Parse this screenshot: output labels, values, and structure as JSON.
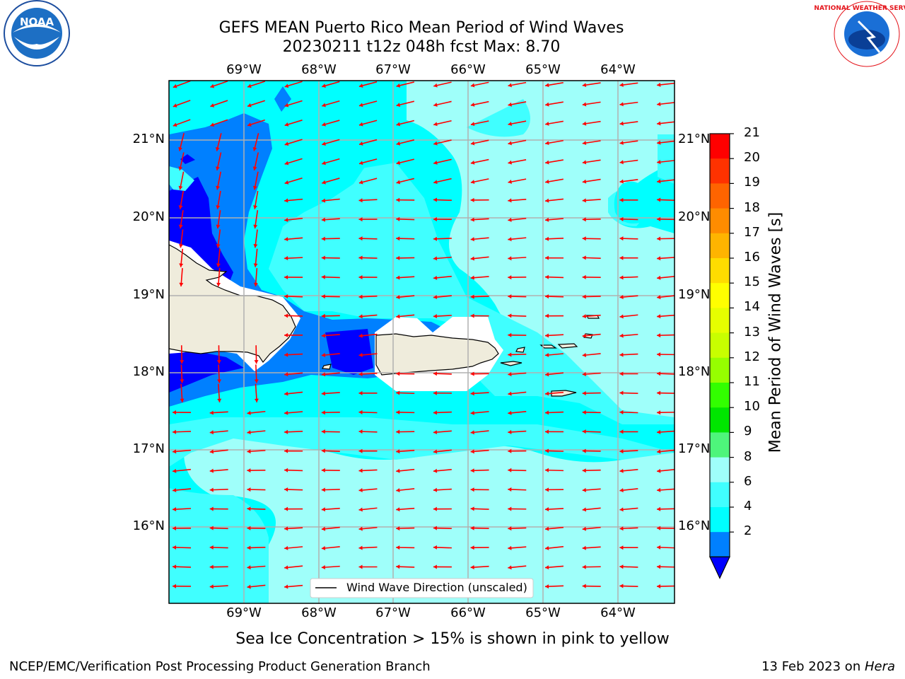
{
  "header": {
    "title_line1": "GEFS MEAN Puerto Rico Mean Period of Wind Waves",
    "title_line2": "20230211 t12z 048h fcst   Max: 8.70",
    "noara_logo_text": "NOAA",
    "noaa_seal_text": "NATIONAL OCEANIC AND ATMOSPHERIC ADMINISTRATION · U.S. DEPARTMENT OF COMMERCE",
    "nws_logo_text": "NATIONAL WEATHER SERVICE"
  },
  "map": {
    "lon_labels": [
      "69°W",
      "68°W",
      "67°W",
      "66°W",
      "65°W",
      "64°W"
    ],
    "lat_labels": [
      "21°N",
      "20°N",
      "19°N",
      "18°N",
      "17°N",
      "16°N"
    ],
    "legend_label": "Wind Wave Direction (unscaled)",
    "arrow_color": "#ff0000",
    "land_color": "#efecdc",
    "colors": {
      "lt2": "#0000ff",
      "2-4": "#0080ff",
      "4-6": "#00ffff",
      "6-8": "#40ffff",
      "8-9": "#9ffffa"
    }
  },
  "colorbar": {
    "title": "Mean Period of Wind Waves [s]",
    "ticks": [
      "21",
      "20",
      "19",
      "18",
      "17",
      "16",
      "15",
      "14",
      "13",
      "12",
      "11",
      "10",
      "9",
      "8",
      "6",
      "4",
      "2"
    ],
    "colors": [
      "#ff0000",
      "#ff3200",
      "#ff6400",
      "#ff8c00",
      "#ffb400",
      "#ffdc00",
      "#ffff00",
      "#e6ff00",
      "#c8ff00",
      "#96ff00",
      "#32ff00",
      "#00e600",
      "#4ef57b",
      "#9ffffa",
      "#40ffff",
      "#00ffff",
      "#0080ff"
    ],
    "under_color": "#0000ff"
  },
  "footer": {
    "subtitle": "Sea Ice Concentration > 15% is shown in pink to yellow",
    "left": "NCEP/EMC/Verification Post Processing Product Generation Branch",
    "right_prefix": "13 Feb 2023 on ",
    "right_machine": "Hera"
  }
}
